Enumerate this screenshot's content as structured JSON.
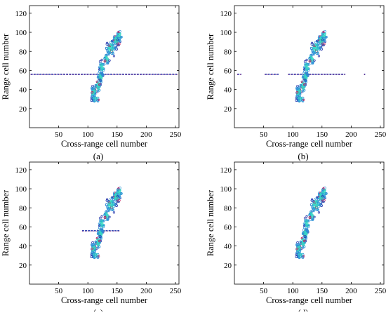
{
  "figure": {
    "panel_labels": [
      "(a)",
      "(b)",
      "(c)",
      "(d)"
    ]
  },
  "chart_data": [
    {
      "type": "scatter",
      "panel": "(a)",
      "title": "",
      "xlabel": "Cross-range cell number",
      "ylabel": "Range cell number",
      "xlim": [
        0,
        256
      ],
      "ylim": [
        0,
        128
      ],
      "xticks": [
        50,
        100,
        150,
        200,
        250
      ],
      "yticks": [
        20,
        40,
        60,
        80,
        100,
        120
      ],
      "grid": false,
      "colors": {
        "contour_low": "#1f2fa8",
        "contour_mid": "#2a8fd6",
        "contour_high": "#38d6c4",
        "spur": "#c2185b"
      },
      "streak": {
        "y": 56,
        "x_segments": [
          [
            2,
            254
          ]
        ]
      }
    },
    {
      "type": "scatter",
      "panel": "(b)",
      "title": "",
      "xlabel": "Cross-range cell number",
      "ylabel": "Range cell number",
      "xlim": [
        0,
        256
      ],
      "ylim": [
        0,
        128
      ],
      "xticks": [
        50,
        100,
        150,
        200,
        250
      ],
      "yticks": [
        20,
        40,
        60,
        80,
        100,
        120
      ],
      "grid": false,
      "colors": {
        "contour_low": "#1f2fa8",
        "contour_mid": "#2a8fd6",
        "contour_high": "#38d6c4",
        "spur": "#c2185b"
      },
      "streak": {
        "y": 56,
        "x_segments": [
          [
            5,
            12
          ],
          [
            52,
            76
          ],
          [
            92,
            190
          ],
          [
            222,
            224
          ]
        ]
      }
    },
    {
      "type": "scatter",
      "panel": "(c)",
      "title": "",
      "xlabel": "Cross-range cell number",
      "ylabel": "Range cell number",
      "xlim": [
        0,
        256
      ],
      "ylim": [
        0,
        128
      ],
      "xticks": [
        50,
        100,
        150,
        200,
        250
      ],
      "yticks": [
        20,
        40,
        60,
        80,
        100,
        120
      ],
      "grid": false,
      "colors": {
        "contour_low": "#1f2fa8",
        "contour_mid": "#2a8fd6",
        "contour_high": "#38d6c4",
        "spur": "#c2185b"
      },
      "streak": {
        "y": 56,
        "x_segments": [
          [
            90,
            154
          ]
        ]
      }
    },
    {
      "type": "scatter",
      "panel": "(d)",
      "title": "",
      "xlabel": "Cross-range cell number",
      "ylabel": "Range cell number",
      "xlim": [
        0,
        256
      ],
      "ylim": [
        0,
        128
      ],
      "xticks": [
        50,
        100,
        150,
        200,
        250
      ],
      "yticks": [
        20,
        40,
        60,
        80,
        100,
        120
      ],
      "grid": false,
      "colors": {
        "contour_low": "#1f2fa8",
        "contour_mid": "#2a8fd6",
        "contour_high": "#38d6c4",
        "spur": "#c2185b"
      },
      "streak": {
        "y": 56,
        "x_segments": []
      }
    }
  ],
  "target_clusters": [
    {
      "x": 149,
      "y": 92,
      "sx": 4,
      "sy": 4,
      "n": 70
    },
    {
      "x": 140,
      "y": 83,
      "sx": 5,
      "sy": 5,
      "n": 60
    },
    {
      "x": 154,
      "y": 97,
      "sx": 3,
      "sy": 3,
      "n": 25
    },
    {
      "x": 132,
      "y": 72,
      "sx": 3,
      "sy": 4,
      "n": 30
    },
    {
      "x": 124,
      "y": 64,
      "sx": 3,
      "sy": 4,
      "n": 30
    },
    {
      "x": 121,
      "y": 53,
      "sx": 3,
      "sy": 4,
      "n": 60
    },
    {
      "x": 117,
      "y": 44,
      "sx": 3,
      "sy": 4,
      "n": 40
    },
    {
      "x": 110,
      "y": 37,
      "sx": 3,
      "sy": 4,
      "n": 55
    },
    {
      "x": 113,
      "y": 30,
      "sx": 4,
      "sy": 2,
      "n": 25
    }
  ]
}
